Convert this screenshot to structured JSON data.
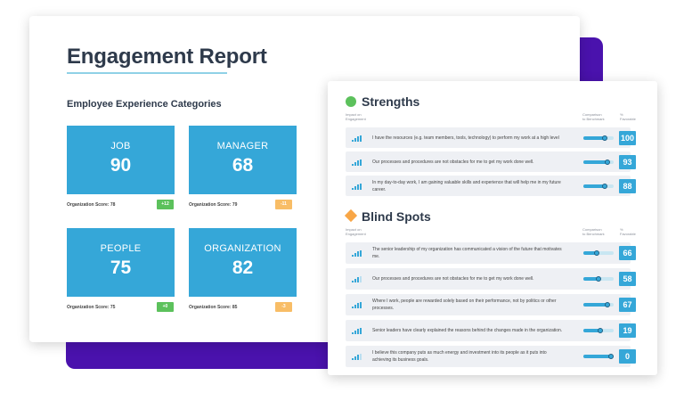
{
  "report": {
    "title": "Engagement Report",
    "categories_heading": "Employee Experience Categories",
    "categories": [
      {
        "name": "JOB",
        "score": "90",
        "org_score": "Organization Score: 78",
        "delta": "+12",
        "delta_color": "#5cc15c"
      },
      {
        "name": "MANAGER",
        "score": "68",
        "org_score": "Organization Score: 79",
        "delta": "-11",
        "delta_color": "#f8bd66"
      },
      {
        "name": "PEOPLE",
        "score": "75",
        "org_score": "Organization Score: 75",
        "delta": "+0",
        "delta_color": "#5cc15c"
      },
      {
        "name": "ORGANIZATION",
        "score": "82",
        "org_score": "Organization Score: 85",
        "delta": "-3",
        "delta_color": "#f8bd66"
      }
    ]
  },
  "strengths": {
    "title": "Strengths",
    "col_impact": "Impact on\nEngagement",
    "col_comparison": "Comparison\nto Benchmark",
    "col_favorable": "%\nFavorable",
    "items": [
      {
        "text": "I have the resources (e.g. team members, tools, technology) to perform my work at a high level",
        "impact": 4,
        "comparison": 0.7,
        "favorable": "100"
      },
      {
        "text": "Our processes and procedures are not obstacles for me to get my work done well.",
        "impact": 4,
        "comparison": 0.8,
        "favorable": "93"
      },
      {
        "text": "In my day-to-day work, I am gaining valuable skills and experience that will help me in my future career.",
        "impact": 4,
        "comparison": 0.72,
        "favorable": "88"
      }
    ]
  },
  "blind_spots": {
    "title": "Blind Spots",
    "col_impact": "Impact on\nEngagement",
    "col_comparison": "Comparison\nto Benchmark",
    "col_favorable": "%\nFavorable",
    "items": [
      {
        "text": "The senior leadership of my organization has communicated a vision of the future that motivates me.",
        "impact": 4,
        "comparison": 0.45,
        "favorable": "66"
      },
      {
        "text": "Our processes and procedures are not obstacles for me to get my work done well.",
        "impact": 3,
        "comparison": 0.5,
        "favorable": "58"
      },
      {
        "text": "Where I work, people are rewarded solely based on their performance, not by politics or other processes.",
        "impact": 4,
        "comparison": 0.78,
        "favorable": "67"
      },
      {
        "text": "Senior leaders have clearly explained the reasons behind the changes made in the organization.",
        "impact": 4,
        "comparison": 0.55,
        "favorable": "19"
      },
      {
        "text": "I believe this company puts as much energy and investment into its people as it puts into achieving its business goals.",
        "impact": 3,
        "comparison": 0.9,
        "favorable": "0"
      }
    ]
  },
  "colors": {
    "accent": "#35a7d8",
    "purple": "#4a12ad",
    "green": "#5cc15c",
    "orange": "#f8a646"
  }
}
